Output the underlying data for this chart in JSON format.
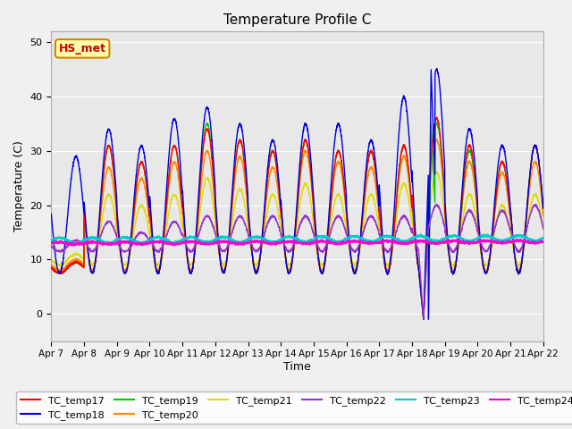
{
  "title": "Temperature Profile C",
  "xlabel": "Time",
  "ylabel": "Temperature (C)",
  "ylim": [
    -5,
    52
  ],
  "fig_bg": "#f0f0f0",
  "plot_bg": "#e8e8e8",
  "series_colors": {
    "TC_temp17": "#ff0000",
    "TC_temp18": "#0000dd",
    "TC_temp19": "#00cc00",
    "TC_temp20": "#ff8800",
    "TC_temp21": "#dddd00",
    "TC_temp22": "#9933cc",
    "TC_temp23": "#00cccc",
    "TC_temp24": "#ff00cc"
  },
  "annotation_text": "HS_met",
  "annotation_color": "#cc0000",
  "annotation_bg": "#ffffaa",
  "annotation_border": "#cc8800",
  "tick_labels": [
    "Apr 7",
    "Apr 8",
    "Apr 9",
    "Apr 10",
    "Apr 11",
    "Apr 12",
    "Apr 13",
    "Apr 14",
    "Apr 15",
    "Apr 16",
    "Apr 17",
    "Apr 18",
    "Apr 19",
    "Apr 20",
    "Apr 21",
    "Apr 22"
  ]
}
